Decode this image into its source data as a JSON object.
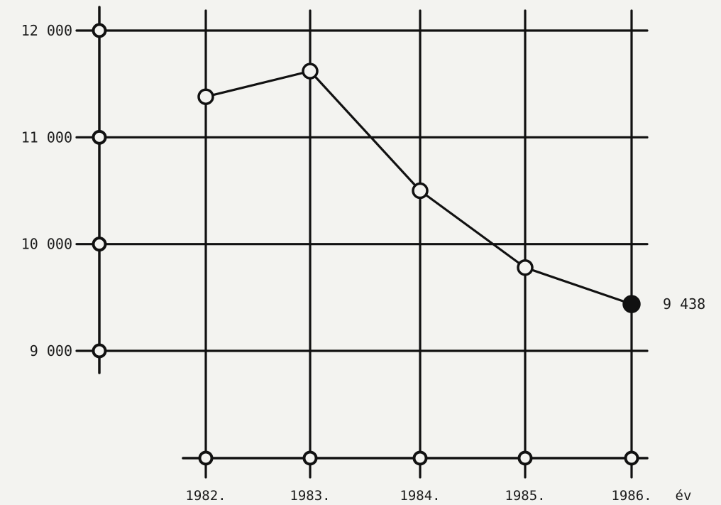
{
  "chart_data": {
    "type": "line",
    "title": "",
    "xlabel": "",
    "ylabel": "",
    "x_unit_label": "év",
    "categories": [
      "1982.",
      "1983.",
      "1984.",
      "1985.",
      "1986."
    ],
    "values": [
      11380,
      11620,
      10500,
      9780,
      9438
    ],
    "highlight": {
      "index": 4,
      "label": "9 438"
    },
    "ylim": [
      9000,
      12000
    ],
    "yticks": [
      {
        "value": 12000,
        "label": "12 000"
      },
      {
        "value": 11000,
        "label": "11 000"
      },
      {
        "value": 10000,
        "label": "10 000"
      },
      {
        "value": 9000,
        "label": "9 000"
      }
    ],
    "grid": true,
    "colors": {
      "ink": "#111111",
      "background": "#f3f3f0"
    }
  }
}
